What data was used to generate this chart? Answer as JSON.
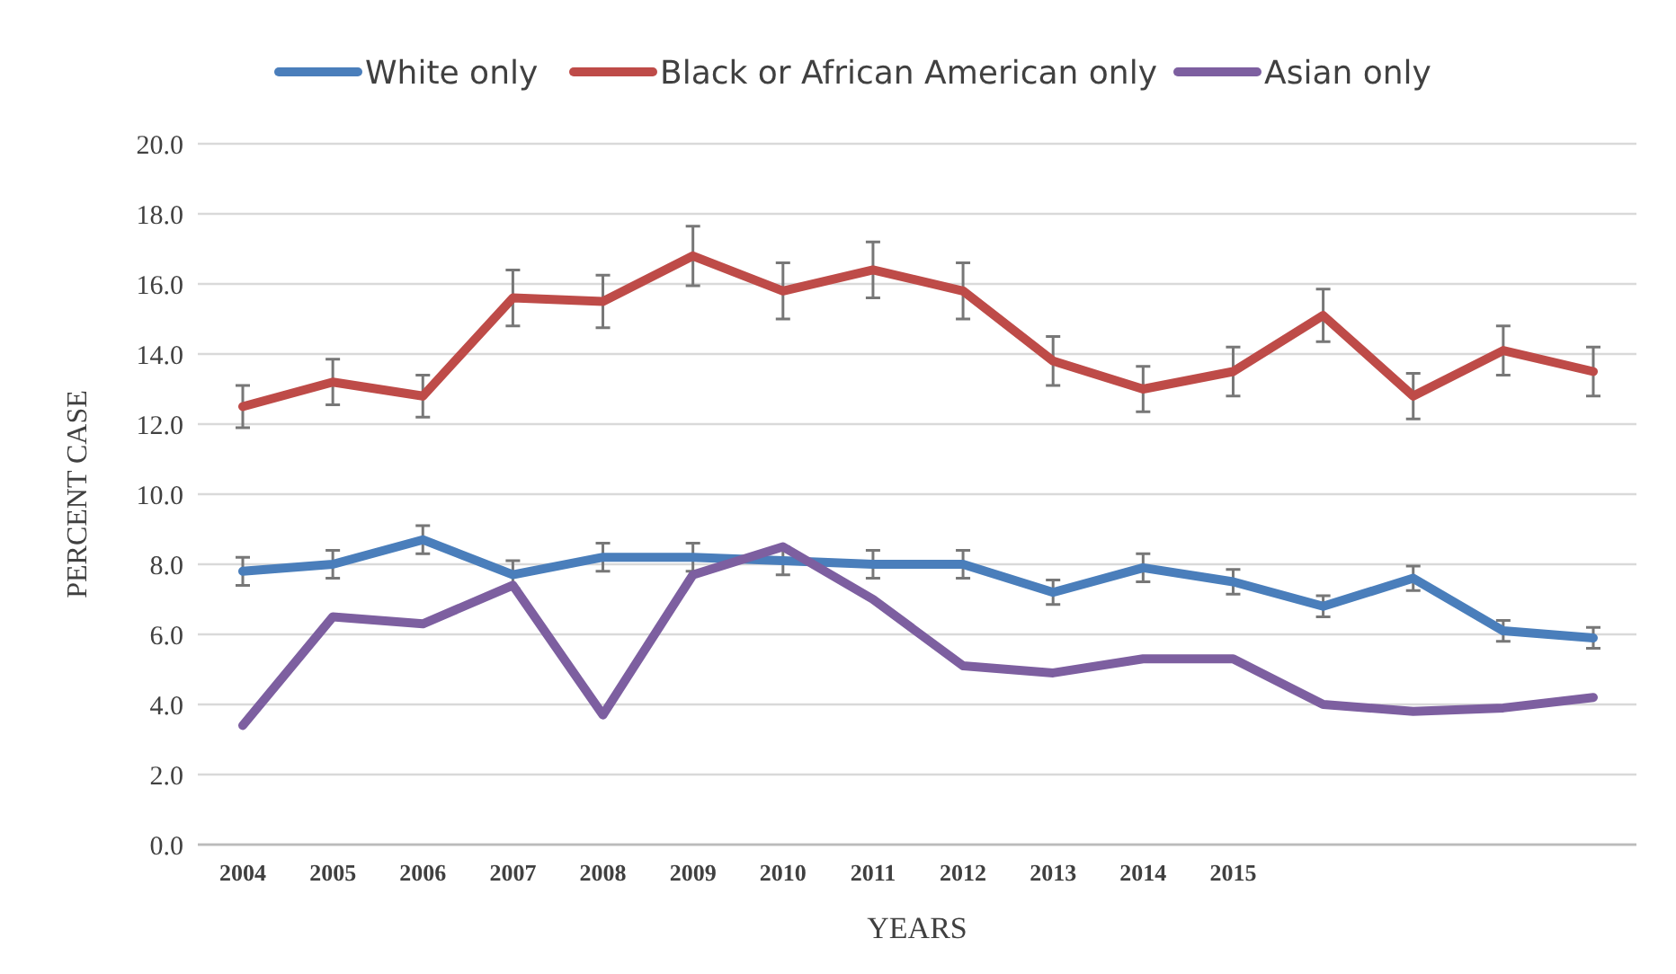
{
  "chart_data": {
    "type": "line",
    "xlabel": "YEARS",
    "ylabel": "PERCENT CASE",
    "categories": [
      "2004",
      "2005",
      "2006",
      "2007",
      "2008",
      "2009",
      "2010",
      "2011",
      "2012",
      "2013",
      "2014",
      "2015",
      null,
      null,
      null,
      null
    ],
    "ylim": [
      0,
      20
    ],
    "yticks": [
      {
        "value": 0,
        "label": "0.0"
      },
      {
        "value": 2,
        "label": "2.0"
      },
      {
        "value": 4,
        "label": "4.0"
      },
      {
        "value": 6,
        "label": "6.0"
      },
      {
        "value": 8,
        "label": "8.0"
      },
      {
        "value": 10,
        "label": "10.0"
      },
      {
        "value": 12,
        "label": "12.0"
      },
      {
        "value": 14,
        "label": "14.0"
      },
      {
        "value": 16,
        "label": "16.0"
      },
      {
        "value": 18,
        "label": "18.0"
      },
      {
        "value": 20,
        "label": "20.0"
      }
    ],
    "grid": "y",
    "legend": "top",
    "marker": "none",
    "line_style": "solid",
    "series": [
      {
        "name": "White only",
        "color": "#4a7ebb",
        "values": [
          7.8,
          8.0,
          8.7,
          7.7,
          8.2,
          8.2,
          8.1,
          8.0,
          8.0,
          7.2,
          7.9,
          7.5,
          6.8,
          7.6,
          6.1,
          5.9
        ],
        "errors": [
          0.4,
          0.4,
          0.4,
          0.4,
          0.4,
          0.4,
          0.4,
          0.4,
          0.4,
          0.35,
          0.4,
          0.35,
          0.3,
          0.35,
          0.3,
          0.3
        ]
      },
      {
        "name": "Black or African American only",
        "color": "#be4b48",
        "values": [
          12.5,
          13.2,
          12.8,
          15.6,
          15.5,
          16.8,
          15.8,
          16.4,
          15.8,
          13.8,
          13.0,
          13.5,
          15.1,
          12.8,
          14.1,
          13.5
        ],
        "errors": [
          0.6,
          0.65,
          0.6,
          0.8,
          0.75,
          0.85,
          0.8,
          0.8,
          0.8,
          0.7,
          0.65,
          0.7,
          0.75,
          0.65,
          0.7,
          0.7
        ]
      },
      {
        "name": "Asian only",
        "color": "#7d5fa0",
        "values": [
          3.4,
          6.5,
          6.3,
          7.4,
          3.7,
          7.7,
          8.5,
          7.0,
          5.1,
          4.9,
          5.3,
          5.3,
          4.0,
          3.8,
          3.9,
          4.2
        ]
      }
    ]
  }
}
